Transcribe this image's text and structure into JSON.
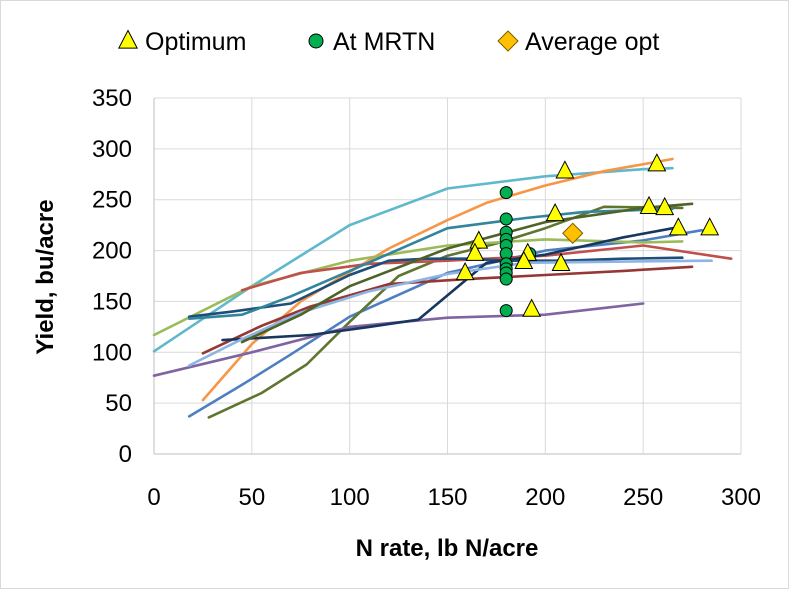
{
  "chart_data": {
    "type": "line",
    "xlabel": "N rate, lb N/acre",
    "ylabel": "Yield, bu/acre",
    "xlim": [
      0,
      300
    ],
    "ylim": [
      0,
      350
    ],
    "xticks": [
      0,
      50,
      100,
      150,
      200,
      250,
      300
    ],
    "yticks": [
      0,
      50,
      100,
      150,
      200,
      250,
      300,
      350
    ],
    "grid": true,
    "legend_position": "top",
    "legend": [
      {
        "label": "Optimum",
        "marker": "triangle",
        "color": "#ffff00"
      },
      {
        "label": "At MRTN",
        "marker": "circle",
        "color": "#00b050"
      },
      {
        "label": "Average opt",
        "marker": "diamond",
        "color": "#ffc000"
      }
    ],
    "series": [
      {
        "color": "#5fb8cc",
        "x": [
          0,
          50,
          100,
          150,
          200,
          250,
          265
        ],
        "y": [
          101,
          165,
          225,
          261,
          273,
          280,
          281
        ]
      },
      {
        "color": "#f79646",
        "x": [
          25,
          50,
          75,
          120,
          150,
          170,
          200,
          230,
          265
        ],
        "y": [
          53,
          108,
          150,
          202,
          230,
          247,
          264,
          278,
          290
        ]
      },
      {
        "color": "#4e7fc2",
        "x": [
          18,
          45,
          70,
          100,
          150,
          200,
          250,
          280
        ],
        "y": [
          37,
          68,
          98,
          135,
          178,
          200,
          210,
          220
        ]
      },
      {
        "color": "#5f7530",
        "x": [
          28,
          55,
          78,
          100,
          125,
          150,
          175,
          200,
          230,
          270
        ],
        "y": [
          36,
          60,
          88,
          130,
          175,
          195,
          207,
          222,
          243,
          242
        ]
      },
      {
        "color": "#8064a2",
        "x": [
          0,
          50,
          100,
          150,
          200,
          250
        ],
        "y": [
          77,
          100,
          125,
          134,
          137,
          148
        ]
      },
      {
        "color": "#9bbb59",
        "x": [
          0,
          50,
          100,
          150,
          200,
          250,
          270
        ],
        "y": [
          117,
          165,
          190,
          205,
          211,
          208,
          209
        ]
      },
      {
        "color": "#c0504d",
        "x": [
          45,
          75,
          110,
          150,
          200,
          250,
          295
        ],
        "y": [
          161,
          178,
          187,
          190,
          195,
          205,
          192
        ]
      },
      {
        "color": "#1f4e79",
        "x": [
          18,
          40,
          70,
          100,
          120,
          140,
          160,
          180,
          210,
          240,
          270
        ],
        "y": [
          135,
          140,
          148,
          176,
          190,
          192,
          192,
          190,
          190,
          192,
          193
        ]
      },
      {
        "color": "#31859c",
        "x": [
          18,
          45,
          70,
          100,
          150,
          190,
          220,
          265
        ],
        "y": [
          133,
          137,
          155,
          180,
          222,
          232,
          238,
          241
        ]
      },
      {
        "color": "#953734",
        "x": [
          25,
          55,
          80,
          120,
          160,
          200,
          240,
          275
        ],
        "y": [
          99,
          126,
          145,
          167,
          172,
          176,
          180,
          184
        ]
      },
      {
        "color": "#17375e",
        "x": [
          35,
          80,
          110,
          135,
          170,
          200,
          240,
          268
        ],
        "y": [
          112,
          117,
          125,
          132,
          188,
          196,
          213,
          223
        ]
      },
      {
        "color": "#8eb4e3",
        "x": [
          18,
          45,
          75,
          110,
          150,
          190,
          230,
          285
        ],
        "y": [
          87,
          113,
          139,
          160,
          177,
          188,
          189,
          190
        ]
      },
      {
        "color": "#4f6228",
        "x": [
          45,
          75,
          100,
          150,
          200,
          250,
          275
        ],
        "y": [
          110,
          137,
          165,
          202,
          228,
          242,
          246
        ]
      }
    ],
    "optimum_points": [
      {
        "x": 210,
        "y": 278
      },
      {
        "x": 257,
        "y": 285
      },
      {
        "x": 205,
        "y": 236
      },
      {
        "x": 253,
        "y": 243
      },
      {
        "x": 261,
        "y": 242
      },
      {
        "x": 268,
        "y": 222
      },
      {
        "x": 284,
        "y": 222
      },
      {
        "x": 166,
        "y": 209
      },
      {
        "x": 164,
        "y": 197
      },
      {
        "x": 191,
        "y": 197
      },
      {
        "x": 189,
        "y": 189
      },
      {
        "x": 208,
        "y": 187
      },
      {
        "x": 159,
        "y": 178
      },
      {
        "x": 193,
        "y": 142
      }
    ],
    "mrtn_points": [
      {
        "x": 180,
        "y": 257
      },
      {
        "x": 180,
        "y": 231
      },
      {
        "x": 180,
        "y": 218
      },
      {
        "x": 180,
        "y": 211
      },
      {
        "x": 180,
        "y": 205
      },
      {
        "x": 180,
        "y": 197
      },
      {
        "x": 180,
        "y": 187
      },
      {
        "x": 180,
        "y": 182
      },
      {
        "x": 180,
        "y": 178
      },
      {
        "x": 180,
        "y": 172
      },
      {
        "x": 180,
        "y": 141
      },
      {
        "x": 192,
        "y": 197
      }
    ],
    "average_opt_point": {
      "x": 214,
      "y": 217
    }
  }
}
